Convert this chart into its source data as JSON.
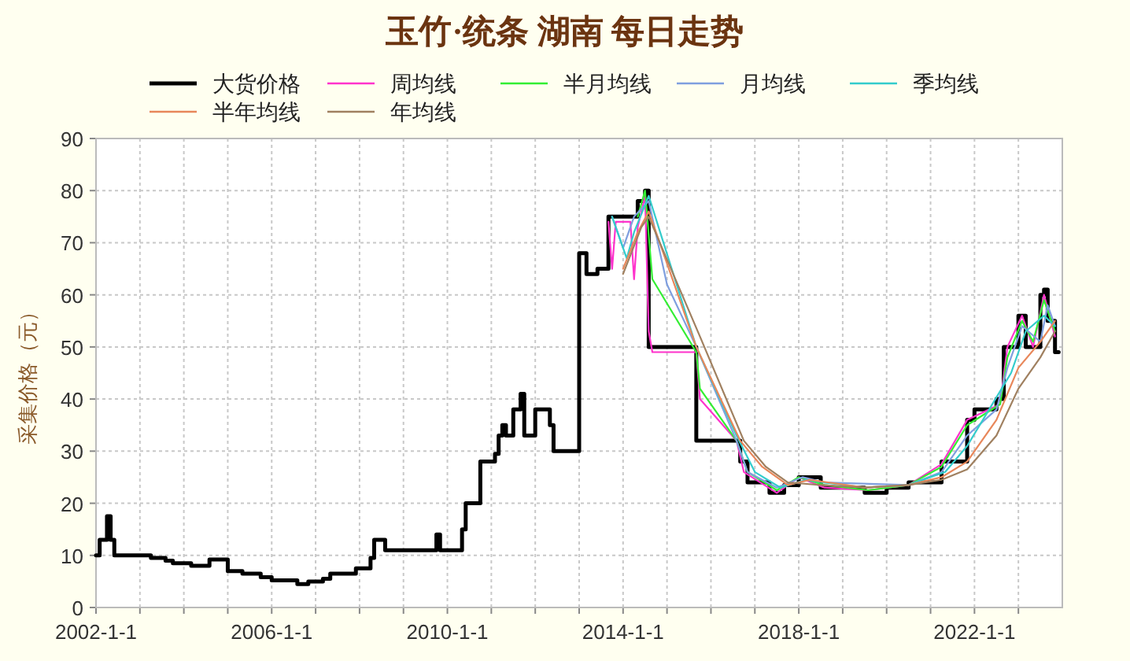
{
  "chart_data": {
    "type": "line",
    "title": "玉竹·统条 湖南 每日走势",
    "ylabel": "采集价格（元）",
    "xlim": [
      "2002-01-01",
      "2024-01-01"
    ],
    "xticks": [
      {
        "value": "2002-01-01",
        "label": "2002-1-1"
      },
      {
        "value": "2003-01-01",
        "label": null
      },
      {
        "value": "2004-01-01",
        "label": null
      },
      {
        "value": "2005-01-01",
        "label": null
      },
      {
        "value": "2006-01-01",
        "label": "2006-1-1"
      },
      {
        "value": "2007-01-01",
        "label": null
      },
      {
        "value": "2008-01-01",
        "label": null
      },
      {
        "value": "2009-01-01",
        "label": null
      },
      {
        "value": "2010-01-01",
        "label": "2010-1-1"
      },
      {
        "value": "2011-01-01",
        "label": null
      },
      {
        "value": "2012-01-01",
        "label": null
      },
      {
        "value": "2013-01-01",
        "label": null
      },
      {
        "value": "2014-01-01",
        "label": "2014-1-1"
      },
      {
        "value": "2015-01-01",
        "label": null
      },
      {
        "value": "2016-01-01",
        "label": null
      },
      {
        "value": "2017-01-01",
        "label": null
      },
      {
        "value": "2018-01-01",
        "label": "2018-1-1"
      },
      {
        "value": "2019-01-01",
        "label": null
      },
      {
        "value": "2020-01-01",
        "label": null
      },
      {
        "value": "2021-01-01",
        "label": null
      },
      {
        "value": "2022-01-01",
        "label": "2022-1-1"
      },
      {
        "value": "2023-01-01",
        "label": null
      }
    ],
    "ylim": [
      0,
      90
    ],
    "yticks": [
      0,
      10,
      20,
      30,
      40,
      50,
      60,
      70,
      80,
      90
    ],
    "grid": true,
    "legend": "top",
    "series": [
      {
        "name": "大货价格",
        "type": "step",
        "color": "#000000",
        "x": [
          "2002-01",
          "2002-02",
          "2002-04",
          "2002-05",
          "2002-06",
          "2003-04",
          "2003-08",
          "2003-10",
          "2004-03",
          "2004-08",
          "2005-01",
          "2005-05",
          "2005-10",
          "2006-01",
          "2006-08",
          "2006-11",
          "2007-03",
          "2007-05",
          "2007-12",
          "2008-04",
          "2008-05",
          "2008-08",
          "2009-10",
          "2009-11",
          "2010-05",
          "2010-06",
          "2010-10",
          "2011-02",
          "2011-03",
          "2011-04",
          "2011-05",
          "2011-07",
          "2011-09",
          "2011-10",
          "2012-01",
          "2012-05",
          "2012-06",
          "2013-01",
          "2013-03",
          "2013-06",
          "2013-09",
          "2014-05",
          "2014-07",
          "2014-08",
          "2015-09",
          "2016-09",
          "2016-11",
          "2017-05",
          "2017-09",
          "2018-01",
          "2018-07",
          "2019-07",
          "2020-01",
          "2020-07",
          "2021-04",
          "2021-11",
          "2022-01",
          "2022-07",
          "2022-09",
          "2023-01",
          "2023-03",
          "2023-07",
          "2023-08",
          "2023-09",
          "2023-11",
          "2023-12"
        ],
        "values": [
          10,
          13,
          17.5,
          13,
          10,
          9.5,
          9,
          8.5,
          8,
          9.2,
          7,
          6.5,
          5.8,
          5.2,
          4.5,
          5,
          5.5,
          6.5,
          7.5,
          9.5,
          13,
          11,
          14,
          11,
          15,
          20,
          28,
          29.5,
          33,
          35,
          33,
          38,
          41,
          33,
          38,
          35,
          30,
          68,
          64,
          65,
          75,
          78,
          80,
          50,
          32,
          28,
          24,
          22,
          23.5,
          25,
          23,
          22,
          23,
          24,
          28,
          36,
          38,
          40,
          50,
          56,
          50,
          60,
          61,
          55,
          49,
          49
        ]
      },
      {
        "name": "周均线",
        "color": "#ff33cc",
        "x": [
          "2013-09",
          "2013-10",
          "2013-11",
          "2014-03",
          "2014-04",
          "2014-05",
          "2014-07",
          "2014-08",
          "2014-09",
          "2015-09",
          "2015-10",
          "2016-08",
          "2016-10",
          "2017-07",
          "2018-01",
          "2018-08",
          "2019-08",
          "2020-07",
          "2021-04",
          "2021-11",
          "2022-08",
          "2022-10",
          "2023-02",
          "2023-05",
          "2023-08",
          "2023-11"
        ],
        "values": [
          74,
          65,
          74,
          74,
          63,
          73,
          79,
          53,
          49,
          49,
          40,
          32,
          26,
          22,
          25,
          23,
          22.5,
          23.5,
          27.5,
          36,
          39,
          50,
          56,
          50,
          60,
          52
        ]
      },
      {
        "name": "半月均线",
        "color": "#33ee33",
        "x": [
          "2014-05",
          "2014-07",
          "2014-09",
          "2015-09",
          "2015-10",
          "2016-08",
          "2016-11",
          "2017-07",
          "2018-01",
          "2018-08",
          "2019-08",
          "2020-07",
          "2021-04",
          "2021-11",
          "2022-08",
          "2022-10",
          "2023-02",
          "2023-05",
          "2023-08",
          "2023-11"
        ],
        "values": [
          75,
          80,
          63,
          49,
          42,
          32,
          26,
          22.5,
          25,
          23.5,
          22.5,
          23.5,
          27,
          35,
          39,
          48,
          55,
          51,
          59,
          53
        ]
      },
      {
        "name": "月均线",
        "color": "#7f9fdf",
        "x": [
          "2013-10",
          "2014-01",
          "2014-04",
          "2014-08",
          "2015-01",
          "2015-09",
          "2016-08",
          "2016-11",
          "2017-07",
          "2018-02",
          "2018-08",
          "2020-07",
          "2021-04",
          "2021-11",
          "2022-07",
          "2022-10",
          "2023-02",
          "2023-07",
          "2023-09",
          "2023-11"
        ],
        "values": [
          75,
          69,
          75,
          78,
          62,
          50,
          32,
          26,
          23,
          25,
          24,
          23.5,
          26,
          33,
          38,
          46,
          54,
          51,
          58,
          54
        ]
      },
      {
        "name": "季均线",
        "color": "#33cccc",
        "x": [
          "2013-10",
          "2014-02",
          "2014-04",
          "2014-08",
          "2015-09",
          "2016-08",
          "2017-01",
          "2017-08",
          "2018-03",
          "2018-08",
          "2019-07",
          "2020-07",
          "2021-05",
          "2021-11",
          "2022-05",
          "2022-11",
          "2023-03",
          "2023-08",
          "2023-11"
        ],
        "values": [
          75,
          67,
          72,
          79,
          50,
          33,
          26,
          23,
          24.5,
          24,
          23,
          23.5,
          26,
          31,
          38,
          45,
          53,
          56,
          54
        ]
      },
      {
        "name": "半年均线",
        "color": "#e8875a",
        "x": [
          "2014-01",
          "2014-05",
          "2014-08",
          "2015-09",
          "2016-09",
          "2017-03",
          "2017-10",
          "2018-04",
          "2019-07",
          "2020-07",
          "2021-04",
          "2021-11",
          "2022-07",
          "2023-01",
          "2023-07",
          "2023-11"
        ],
        "values": [
          65,
          72,
          76,
          50,
          32,
          27,
          23.5,
          24.5,
          23,
          23.5,
          25,
          28,
          36,
          46,
          51,
          55
        ]
      },
      {
        "name": "年均线",
        "color": "#a08060",
        "x": [
          "2014-01",
          "2014-06",
          "2014-08",
          "2015-10",
          "2016-10",
          "2017-04",
          "2017-10",
          "2018-07",
          "2019-07",
          "2020-07",
          "2021-04",
          "2021-11",
          "2022-07",
          "2023-01",
          "2023-07",
          "2023-11"
        ],
        "values": [
          64,
          73,
          75,
          52,
          32,
          27,
          24,
          23.5,
          23,
          23.5,
          24.5,
          26.5,
          33,
          42,
          48,
          53
        ]
      }
    ]
  }
}
